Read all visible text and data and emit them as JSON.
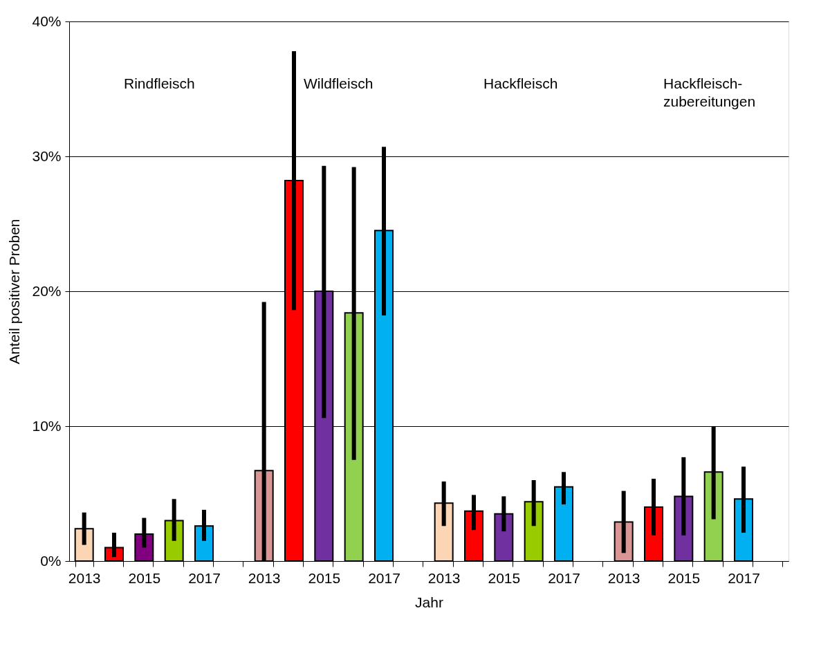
{
  "chart_data": {
    "type": "bar",
    "xlabel": "Jahr",
    "ylabel": "Anteil positiver Proben",
    "categories": [
      "2013",
      null,
      "2015",
      null,
      "2017",
      null,
      "2013",
      null,
      "2015",
      null,
      "2017",
      null,
      "2013",
      null,
      "2015",
      null,
      "2017",
      null,
      "2013",
      null,
      "2015",
      null,
      "2017",
      null
    ],
    "values": [
      2.4,
      1.0,
      2.0,
      3.0,
      2.6,
      null,
      6.7,
      28.2,
      20.0,
      18.4,
      24.5,
      null,
      4.3,
      3.7,
      3.5,
      4.4,
      5.5,
      null,
      2.9,
      4.0,
      4.8,
      6.6,
      4.6,
      null
    ],
    "errors": [
      [
        1.2,
        3.6
      ],
      [
        0.3,
        2.1
      ],
      [
        1.0,
        3.2
      ],
      [
        1.5,
        4.6
      ],
      [
        1.5,
        3.8
      ],
      null,
      [
        0,
        19.2
      ],
      [
        18.6,
        37.8
      ],
      [
        10.6,
        29.3
      ],
      [
        7.5,
        29.2
      ],
      [
        18.2,
        30.7
      ],
      null,
      [
        2.6,
        5.9
      ],
      [
        2.3,
        4.9
      ],
      [
        2.2,
        4.8
      ],
      [
        2.6,
        6.0
      ],
      [
        4.2,
        6.6
      ],
      null,
      [
        0.6,
        5.2
      ],
      [
        1.9,
        6.1
      ],
      [
        1.9,
        7.7
      ],
      [
        3.1,
        10.0
      ],
      [
        2.1,
        7.0
      ],
      null
    ],
    "colors": [
      "#fcd5b4",
      "#ff0000",
      "#800080",
      "#99cc00",
      "#00b0f0",
      null,
      "#d99694",
      "#ff0000",
      "#7030a0",
      "#92d050",
      "#00b0f0",
      null,
      "#fcd5b4",
      "#ff0000",
      "#7030a0",
      "#99cc00",
      "#00b0f0",
      null,
      "#d99694",
      "#ff0000",
      "#7030a0",
      "#92d050",
      "#00b0f0",
      null
    ],
    "ylim": [
      0,
      40
    ],
    "yticks": [
      {
        "value": 0,
        "label": "0%"
      },
      {
        "value": 10,
        "label": "10%"
      },
      {
        "value": 20,
        "label": "20%"
      },
      {
        "value": 30,
        "label": "30%"
      },
      {
        "value": 40,
        "label": "40%"
      }
    ],
    "grid": "y",
    "annotations": [
      "Rindfleisch",
      "Wildfleisch",
      "Hackfleisch",
      "Hackfleisch-\nzubereitungen"
    ]
  }
}
